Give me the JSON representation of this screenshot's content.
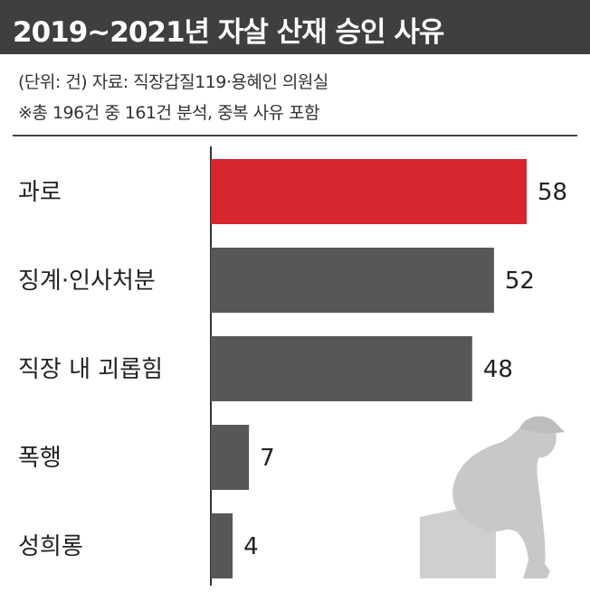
{
  "title": "2019~2021년 자살 산재 승인 사유",
  "notes": {
    "line1": "(단위: 건) 자료: 직장갑질119·용혜인 의원실",
    "line2": "※총 196건 중 161건 분석, 중복 사유 포함"
  },
  "colors": {
    "highlight": "#d7262e",
    "bar": "#575757",
    "title_bg": "#3f3f3f",
    "figure": "#c8c8c8"
  },
  "chart_data": {
    "type": "bar",
    "orientation": "horizontal",
    "categories": [
      "과로",
      "징계·인사처분",
      "직장 내 괴롭힘",
      "폭행",
      "성희롱"
    ],
    "values": [
      58,
      52,
      48,
      7,
      4
    ],
    "highlight_index": 0,
    "xlim": [
      0,
      58
    ],
    "grid": false
  },
  "illustration": {
    "icon": "seated-person-silhouette-icon"
  }
}
